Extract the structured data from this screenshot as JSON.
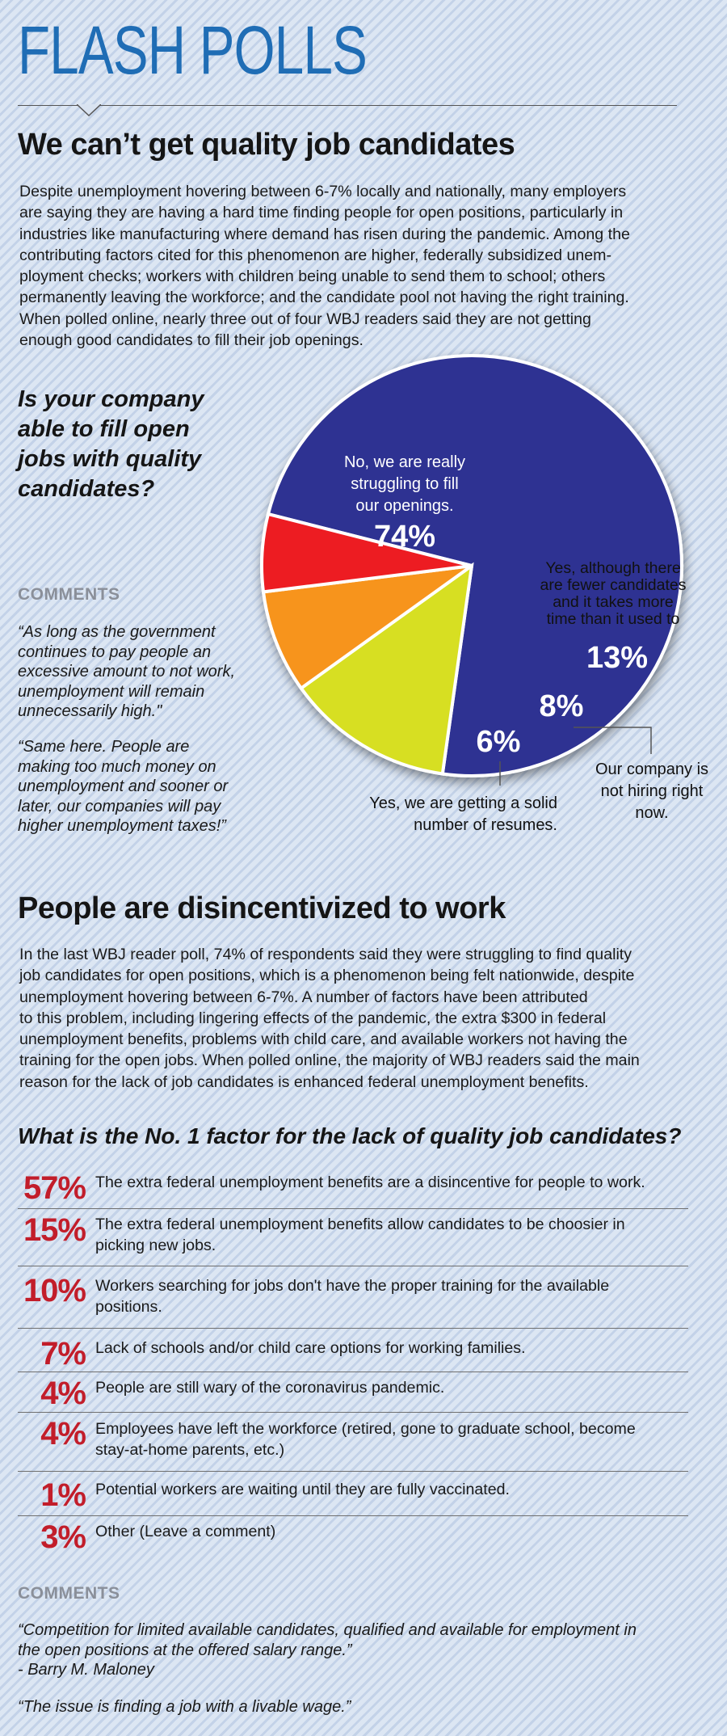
{
  "header": {
    "masthead": "FLASH POLLS"
  },
  "section1": {
    "title": "We can’t get quality job candidates",
    "lines": [
      "Despite unemployment hovering between 6-7% locally and nationally, many employers",
      "are saying they are having a hard time finding people for open positions, particularly in",
      "industries like manufacturing where demand has risen during the pandemic. Among the",
      "contributing factors cited for this phenomenon are higher, federally subsidized unem-",
      "ployment checks; workers with children being unable to send them to school; others",
      "permanently leaving the workforce; and the candidate pool not having the right training.",
      "When polled online, nearly three out of four WBJ readers said they are not getting",
      "enough good candidates to fill their job openings."
    ],
    "question_lines": [
      "Is your company",
      "able to fill open",
      "jobs with quality",
      "candidates?"
    ],
    "comments_heading": "COMMENTS",
    "comment1_lines": [
      "“As long as the government",
      "continues to pay people an",
      "excessive amount to not work,",
      "unemployment will remain",
      "unnecessarily high.\""
    ],
    "comment2_lines": [
      "“Same here. People are",
      "making too much money on",
      "unemployment and sooner or",
      "later, our companies will pay",
      "higher unemployment taxes!”"
    ]
  },
  "chart_data": {
    "type": "pie",
    "title": "Is your company able to fill open jobs with quality candidates?",
    "slices": [
      {
        "label": "No, we are really struggling to fill our openings.",
        "value": 74,
        "display": "74%",
        "color": "#2e3192"
      },
      {
        "label": "Yes, although there are fewer candidates and it takes more time than it used to",
        "value": 13,
        "display": "13%",
        "color": "#d7df23"
      },
      {
        "label": "Our company is not hiring right now.",
        "value": 8,
        "display": "8%",
        "color": "#f7941d"
      },
      {
        "label": "Yes, we are getting a solid number of resumes.",
        "value": 6,
        "display": "6%",
        "color": "#ed1c24"
      }
    ],
    "label_lines": {
      "no": [
        "No, we are really",
        "struggling to fill",
        "our openings."
      ],
      "yes_fewer": [
        "Yes, although there",
        "are fewer candidates",
        "and it takes more",
        "time than it used to"
      ],
      "not_hiring": [
        "Our company is",
        "not hiring right",
        "now."
      ],
      "solid": [
        "Yes, we are getting a solid",
        "number of resumes."
      ]
    }
  },
  "section2": {
    "title": "People are disincentivized to work",
    "lines": [
      "In the last WBJ reader poll, 74% of respondents said they were struggling to find quality",
      "job candidates for open positions, which is a phenomenon being felt nationwide, despite",
      "unemployment hovering between 6-7%. A number of factors have been attributed",
      "to this problem, including lingering effects of the pandemic, the extra $300 in federal",
      "unemployment benefits, problems with child care, and available workers not having the",
      "training for the open jobs. When polled online, the majority of WBJ readers said the main",
      "reason for the lack of job candidates is enhanced federal unemployment benefits."
    ],
    "question": "What is the No. 1 factor for the lack of quality job candidates?",
    "results": [
      {
        "pct": "57%",
        "lines": [
          "The extra federal unemployment benefits are a disincentive for people to work."
        ]
      },
      {
        "pct": "15%",
        "lines": [
          "The extra federal unemployment benefits allow candidates to be choosier in",
          "picking new jobs."
        ]
      },
      {
        "pct": "10%",
        "lines": [
          "Workers searching for jobs don't have the proper training for the available",
          "positions."
        ]
      },
      {
        "pct": "7%",
        "lines": [
          "Lack of schools and/or child care options for working families."
        ]
      },
      {
        "pct": "4%",
        "lines": [
          "People are still wary of the coronavirus pandemic."
        ]
      },
      {
        "pct": "4%",
        "lines": [
          "Employees have left the workforce (retired, gone to graduate school, become",
          "stay-at-home parents, etc.)"
        ]
      },
      {
        "pct": "1%",
        "lines": [
          "Potential workers are waiting until they are fully vaccinated."
        ]
      },
      {
        "pct": "3%",
        "lines": [
          "Other (Leave a comment)"
        ]
      }
    ],
    "comments_heading": "COMMENTS",
    "comment1_lines": [
      "“Competition for limited available candidates, qualified and available for employment in",
      "the open positions at the offered salary range.”",
      "- Barry M. Maloney"
    ],
    "comment2": "“The issue is finding a job with a livable wage.”"
  }
}
